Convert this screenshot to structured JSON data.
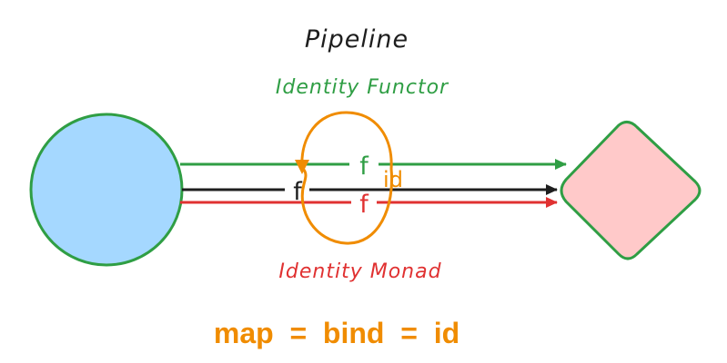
{
  "diagram": {
    "title": "Pipeline",
    "functor_label": "Identity Functor",
    "monad_label": "Identity Monad",
    "formula": "map  =  bind  =  id",
    "edges": {
      "functor_f": "f",
      "plain_f": "f",
      "monad_f": "f",
      "loop_label": "id"
    }
  },
  "colors": {
    "green": "#2f9e44",
    "red": "#e03131",
    "orange": "#f08c00",
    "black": "#1e1e1e",
    "circle_fill": "#a5d8ff",
    "diamond_fill": "#ffc9c9"
  },
  "icons": {
    "source": "circle-node",
    "target": "diamond-node"
  }
}
